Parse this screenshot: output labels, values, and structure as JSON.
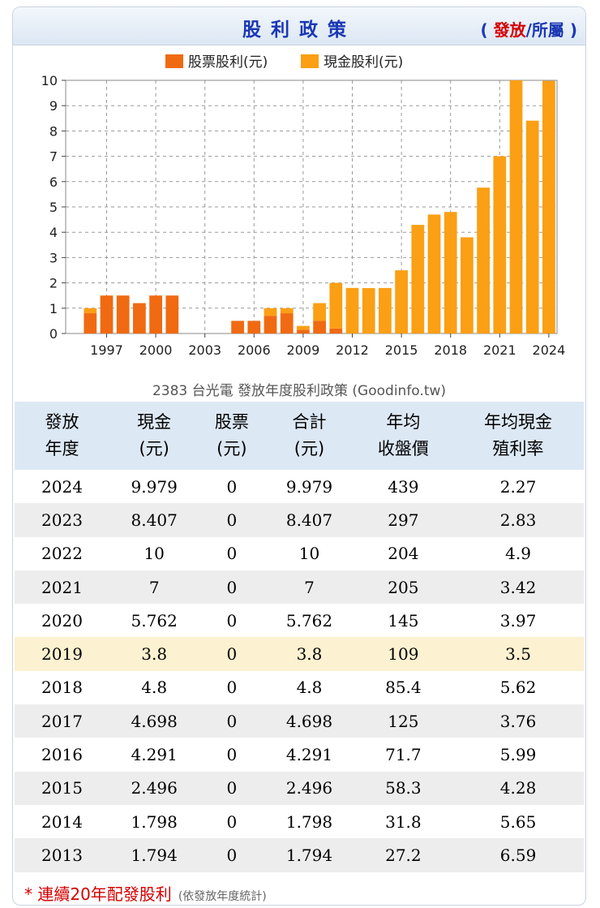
{
  "header": {
    "title": "股利政策",
    "paren_open": "(",
    "link_active": "發放",
    "separator": "/",
    "link_other": "所屬",
    "paren_close": ")"
  },
  "colors": {
    "stock": "#f06a12",
    "cash": "#fb9f14",
    "title_blue": "#1a37b4",
    "accent_red": "#d40000",
    "highlight_row": "#fcf1d0"
  },
  "chart_data": {
    "type": "bar",
    "stacked": true,
    "caption": "2383 台光電 發放年度股利政策 (Goodinfo.tw)",
    "ylim": [
      0,
      10
    ],
    "yticks": [
      "0",
      "1",
      "2",
      "3",
      "4",
      "5",
      "6",
      "7",
      "8",
      "9",
      "10"
    ],
    "xticks": [
      "1997",
      "2000",
      "2003",
      "2006",
      "2009",
      "2012",
      "2015",
      "2018",
      "2021",
      "2024"
    ],
    "grid": true,
    "legend_position": "top-center",
    "series": [
      {
        "name": "股票股利(元)",
        "color": "#f06a12",
        "x": [
          1996,
          1997,
          1998,
          1999,
          2000,
          2001,
          2005,
          2006,
          2007,
          2008,
          2009,
          2010,
          2011
        ],
        "values": [
          0.8,
          1.5,
          1.5,
          1.2,
          1.5,
          1.5,
          0.5,
          0.5,
          0.7,
          0.8,
          0.15,
          0.5,
          0.2
        ]
      },
      {
        "name": "現金股利(元)",
        "color": "#fb9f14",
        "x": [
          1996,
          1997,
          1998,
          1999,
          2000,
          2001,
          2005,
          2006,
          2007,
          2008,
          2009,
          2010,
          2011,
          2012,
          2013,
          2014,
          2015,
          2016,
          2017,
          2018,
          2019,
          2020,
          2021,
          2022,
          2023,
          2024
        ],
        "values": [
          0.2,
          0,
          0,
          0,
          0,
          0,
          0,
          0,
          0.3,
          0.2,
          0.15,
          0.7,
          1.8,
          1.8,
          1.794,
          1.798,
          2.496,
          4.291,
          4.698,
          4.8,
          3.8,
          5.762,
          7,
          10,
          8.407,
          9.979
        ]
      }
    ]
  },
  "table": {
    "headers": [
      {
        "line1": "發放",
        "line2": "年度"
      },
      {
        "line1": "現金",
        "line2": "(元)"
      },
      {
        "line1": "股票",
        "line2": "(元)"
      },
      {
        "line1": "合計",
        "line2": "(元)"
      },
      {
        "line1": "年均",
        "line2": "收盤價"
      },
      {
        "line1": "年均現金",
        "line2": "殖利率"
      }
    ],
    "rows": [
      [
        "2024",
        "9.979",
        "0",
        "9.979",
        "439",
        "2.27"
      ],
      [
        "2023",
        "8.407",
        "0",
        "8.407",
        "297",
        "2.83"
      ],
      [
        "2022",
        "10",
        "0",
        "10",
        "204",
        "4.9"
      ],
      [
        "2021",
        "7",
        "0",
        "7",
        "205",
        "3.42"
      ],
      [
        "2020",
        "5.762",
        "0",
        "5.762",
        "145",
        "3.97"
      ],
      [
        "2019",
        "3.8",
        "0",
        "3.8",
        "109",
        "3.5"
      ],
      [
        "2018",
        "4.8",
        "0",
        "4.8",
        "85.4",
        "5.62"
      ],
      [
        "2017",
        "4.698",
        "0",
        "4.698",
        "125",
        "3.76"
      ],
      [
        "2016",
        "4.291",
        "0",
        "4.291",
        "71.7",
        "5.99"
      ],
      [
        "2015",
        "2.496",
        "0",
        "2.496",
        "58.3",
        "4.28"
      ],
      [
        "2014",
        "1.798",
        "0",
        "1.798",
        "31.8",
        "5.65"
      ],
      [
        "2013",
        "1.794",
        "0",
        "1.794",
        "27.2",
        "6.59"
      ]
    ],
    "highlight_year": "2019"
  },
  "footnote": {
    "text": "* 連續20年配發股利",
    "sub": "(依發放年度統計)"
  }
}
